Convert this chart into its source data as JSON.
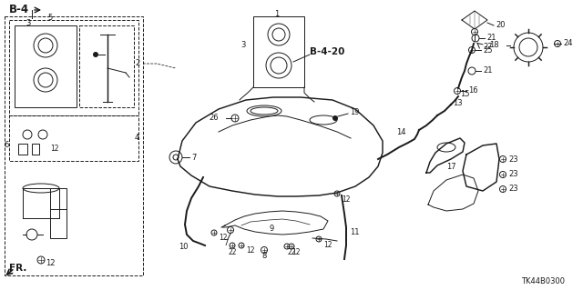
{
  "bg_color": "#ffffff",
  "diagram_code": "TK44B0300",
  "b4_label": "B-4",
  "b4_20_label": "B-4-20",
  "fr_label": "FR.",
  "line_color": "#1a1a1a",
  "line_width": 0.7,
  "font_size_label": 6.0,
  "font_size_code": 6.0,
  "font_size_b4": 8.0
}
